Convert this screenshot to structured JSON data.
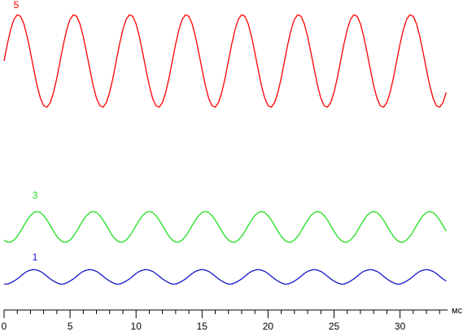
{
  "chart_data": {
    "type": "line",
    "xlabel": "мс",
    "xlim": [
      0,
      33.6
    ],
    "xticks": [
      0,
      5,
      10,
      15,
      20,
      25,
      30
    ],
    "xminorticks": [
      1,
      2,
      3,
      4,
      6,
      7,
      8,
      9,
      11,
      12,
      13,
      14,
      16,
      17,
      18,
      19,
      21,
      22,
      23,
      24,
      26,
      27,
      28,
      29,
      31,
      32,
      33
    ],
    "ylim": [
      0,
      100
    ],
    "x": [
      0,
      0.25,
      0.5,
      0.75,
      1,
      1.25,
      1.5,
      1.75,
      2,
      2.25,
      2.5,
      2.75,
      3,
      3.25,
      3.5,
      3.75,
      4,
      4.25,
      4.5,
      4.75,
      5,
      5.25,
      5.5,
      5.75,
      6,
      6.25,
      6.5,
      6.75,
      7,
      7.25,
      7.5,
      7.75,
      8,
      8.25,
      8.5,
      8.75,
      9,
      9.25,
      9.5,
      9.75,
      10,
      10.25,
      10.5,
      10.75,
      11,
      11.25,
      11.5,
      11.75,
      12,
      12.25,
      12.5,
      12.75,
      13,
      13.25,
      13.5,
      13.75,
      14,
      14.25,
      14.5,
      14.75,
      15,
      15.25,
      15.5,
      15.75,
      16,
      16.25,
      16.5,
      16.75,
      17,
      17.25,
      17.5,
      17.75,
      18,
      18.25,
      18.5,
      18.75,
      19,
      19.25,
      19.5,
      19.75,
      20,
      20.25,
      20.5,
      20.75,
      21,
      21.25,
      21.5,
      21.75,
      22,
      22.25,
      22.5,
      22.75,
      23,
      23.25,
      23.5,
      23.75,
      24,
      24.25,
      24.5,
      24.75,
      25,
      25.25,
      25.5,
      25.75,
      26,
      26.25,
      26.5,
      26.75,
      27,
      27.25,
      27.5,
      27.75,
      28,
      28.25,
      28.5,
      28.75,
      29,
      29.25,
      29.5,
      29.75,
      30,
      30.25,
      30.5,
      30.75,
      31,
      31.25,
      31.5,
      31.75,
      32,
      32.25,
      32.5,
      32.75,
      33,
      33.25,
      33.5
    ],
    "series": [
      {
        "name": "5",
        "color": "#ff0000",
        "values": [
          82.5,
          88.1,
          92.9,
          96.3,
          97.8,
          97.3,
          94.8,
          90.6,
          85.3,
          79.7,
          74.4,
          70.2,
          67.7,
          67.2,
          68.7,
          72.1,
          76.9,
          82.5,
          88.1,
          92.9,
          96.3,
          97.8,
          97.3,
          94.8,
          90.6,
          85.3,
          79.7,
          74.4,
          70.2,
          67.7,
          67.2,
          68.7,
          72.1,
          76.9,
          82.5,
          88.1,
          92.9,
          96.3,
          97.8,
          97.3,
          94.8,
          90.6,
          85.3,
          79.7,
          74.4,
          70.2,
          67.7,
          67.2,
          68.7,
          72.1,
          76.9,
          82.5,
          88.1,
          92.9,
          96.3,
          97.8,
          97.3,
          94.8,
          90.6,
          85.3,
          79.7,
          74.4,
          70.2,
          67.7,
          67.2,
          68.7,
          72.1,
          76.9,
          82.5,
          88.1,
          92.9,
          96.3,
          97.8,
          97.3,
          94.8,
          90.6,
          85.3,
          79.7,
          74.4,
          70.2,
          67.7,
          67.2,
          68.7,
          72.1,
          76.9,
          82.5,
          88.1,
          92.9,
          96.3,
          97.8,
          97.3,
          94.8,
          90.6,
          85.3,
          79.7,
          74.4,
          70.2,
          67.7,
          67.2,
          68.7,
          72.1,
          76.9,
          82.5,
          88.1,
          92.9,
          96.3,
          97.8,
          97.3,
          94.8,
          90.6,
          85.3,
          79.7,
          74.4,
          70.2,
          67.7,
          67.2,
          68.7,
          72.1,
          76.9,
          82.5,
          88.1,
          92.9,
          96.3,
          97.8,
          97.3,
          94.8,
          90.6,
          85.3,
          79.7,
          74.4,
          70.2,
          67.7,
          67.2,
          68.7,
          72.1
        ]
      },
      {
        "name": "3",
        "color": "#22dd22",
        "values": [
          23.2,
          22.5,
          22.5,
          23.2,
          24.4,
          26.1,
          28.0,
          29.8,
          31.3,
          32.3,
          32.6,
          32.3,
          31.3,
          29.8,
          28.0,
          26.1,
          24.4,
          23.2,
          22.5,
          22.5,
          23.2,
          24.4,
          26.1,
          28.0,
          29.8,
          31.3,
          32.3,
          32.6,
          32.3,
          31.3,
          29.8,
          28.0,
          26.1,
          24.4,
          23.2,
          22.5,
          22.5,
          23.2,
          24.4,
          26.1,
          28.0,
          29.8,
          31.3,
          32.3,
          32.6,
          32.3,
          31.3,
          29.8,
          28.0,
          26.1,
          24.4,
          23.2,
          22.5,
          22.5,
          23.2,
          24.4,
          26.1,
          28.0,
          29.8,
          31.3,
          32.3,
          32.6,
          32.3,
          31.3,
          29.8,
          28.0,
          26.1,
          24.4,
          23.2,
          22.5,
          22.5,
          23.2,
          24.4,
          26.1,
          28.0,
          29.8,
          31.3,
          32.3,
          32.6,
          32.3,
          31.3,
          29.8,
          28.0,
          26.1,
          24.4,
          23.2,
          22.5,
          22.5,
          23.2,
          24.4,
          26.1,
          28.0,
          29.8,
          31.3,
          32.3,
          32.6,
          32.3,
          31.3,
          29.8,
          28.0,
          26.1,
          24.4,
          23.2,
          22.5,
          22.5,
          23.2,
          24.4,
          26.1,
          28.0,
          29.8,
          31.3,
          32.3,
          32.6,
          32.3,
          31.3,
          29.8,
          28.0,
          26.1,
          24.4,
          23.2,
          22.5,
          22.5,
          23.2,
          24.4,
          26.1,
          28.0,
          29.8,
          31.3,
          32.3,
          32.6,
          32.3,
          31.3,
          29.8,
          28.0,
          26.1
        ]
      },
      {
        "name": "1",
        "color": "#1414cc",
        "values": [
          8.6,
          8.6,
          9.0,
          9.6,
          10.3,
          11.2,
          12.1,
          12.8,
          13.2,
          13.4,
          13.2,
          12.8,
          12.1,
          11.2,
          10.3,
          9.6,
          9.0,
          8.6,
          8.6,
          9.0,
          9.6,
          10.3,
          11.2,
          12.1,
          12.8,
          13.2,
          13.4,
          13.2,
          12.8,
          12.1,
          11.2,
          10.3,
          9.6,
          9.0,
          8.6,
          8.6,
          9.0,
          9.6,
          10.3,
          11.2,
          12.1,
          12.8,
          13.2,
          13.4,
          13.2,
          12.8,
          12.1,
          11.2,
          10.3,
          9.6,
          9.0,
          8.6,
          8.6,
          9.0,
          9.6,
          10.3,
          11.2,
          12.1,
          12.8,
          13.2,
          13.4,
          13.2,
          12.8,
          12.1,
          11.2,
          10.3,
          9.6,
          9.0,
          8.6,
          8.6,
          9.0,
          9.6,
          10.3,
          11.2,
          12.1,
          12.8,
          13.2,
          13.4,
          13.2,
          12.8,
          12.1,
          11.2,
          10.3,
          9.6,
          9.0,
          8.6,
          8.6,
          9.0,
          9.6,
          10.3,
          11.2,
          12.1,
          12.8,
          13.2,
          13.4,
          13.2,
          12.8,
          12.1,
          11.2,
          10.3,
          9.6,
          9.0,
          8.6,
          8.6,
          9.0,
          9.6,
          10.3,
          11.2,
          12.1,
          12.8,
          13.2,
          13.4,
          13.2,
          12.8,
          12.1,
          11.2,
          10.3,
          9.6,
          9.0,
          8.6,
          8.6,
          9.0,
          9.6,
          10.3,
          11.2,
          12.1,
          12.8,
          13.2,
          13.4,
          13.2,
          12.8,
          12.1,
          11.2,
          10.3,
          9.6
        ]
      }
    ]
  }
}
